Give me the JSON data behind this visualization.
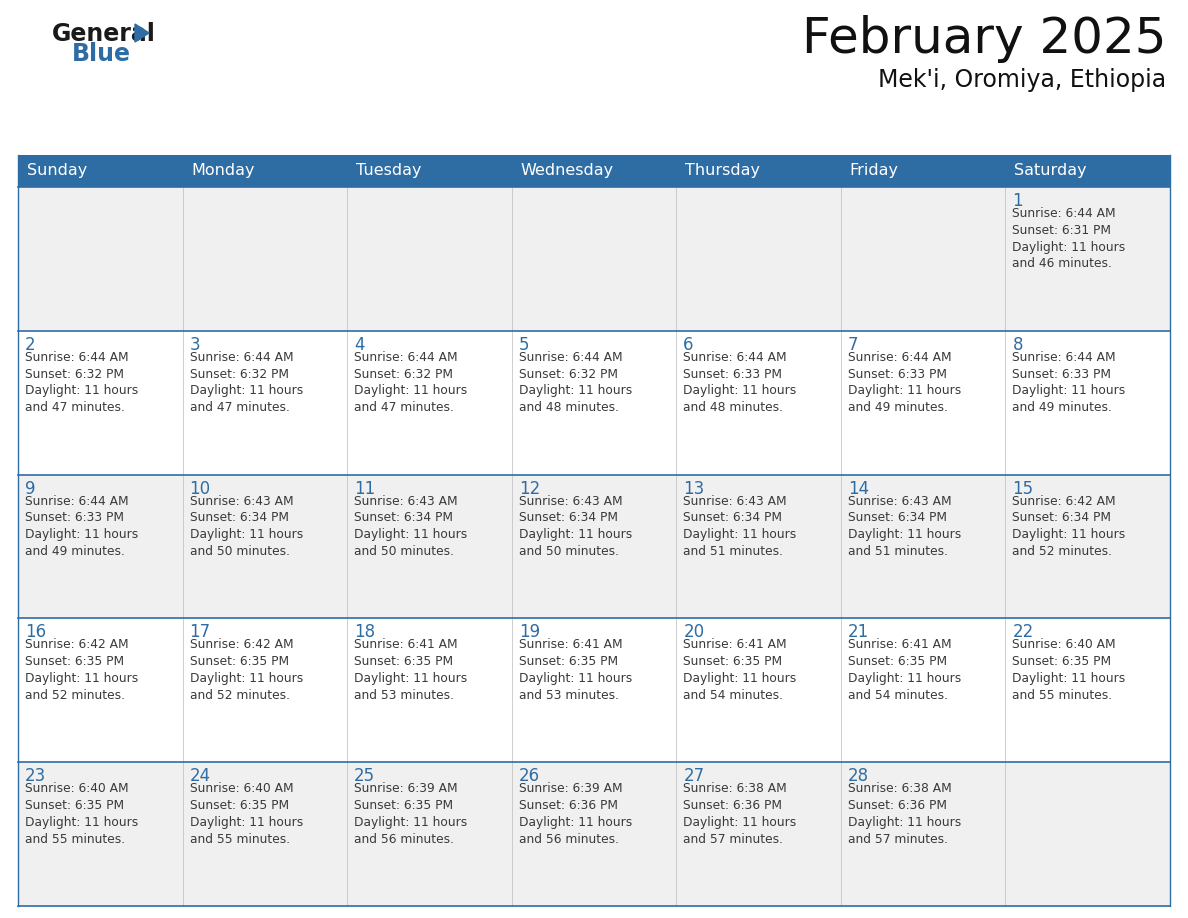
{
  "title": "February 2025",
  "subtitle": "Mek'i, Oromiya, Ethiopia",
  "header_bg": "#2E6DA4",
  "header_text_color": "#FFFFFF",
  "cell_bg_odd": "#F0F0F0",
  "cell_bg_even": "#FFFFFF",
  "day_number_color": "#2E6DA4",
  "info_text_color": "#3a3a3a",
  "border_color": "#2E6DA4",
  "grid_line_color": "#2E6DA4",
  "days_of_week": [
    "Sunday",
    "Monday",
    "Tuesday",
    "Wednesday",
    "Thursday",
    "Friday",
    "Saturday"
  ],
  "calendar_data": [
    [
      {
        "day": null,
        "sunrise": null,
        "sunset": null,
        "daylight_hours": null,
        "daylight_mins": null
      },
      {
        "day": null,
        "sunrise": null,
        "sunset": null,
        "daylight_hours": null,
        "daylight_mins": null
      },
      {
        "day": null,
        "sunrise": null,
        "sunset": null,
        "daylight_hours": null,
        "daylight_mins": null
      },
      {
        "day": null,
        "sunrise": null,
        "sunset": null,
        "daylight_hours": null,
        "daylight_mins": null
      },
      {
        "day": null,
        "sunrise": null,
        "sunset": null,
        "daylight_hours": null,
        "daylight_mins": null
      },
      {
        "day": null,
        "sunrise": null,
        "sunset": null,
        "daylight_hours": null,
        "daylight_mins": null
      },
      {
        "day": 1,
        "sunrise": "6:44 AM",
        "sunset": "6:31 PM",
        "daylight_hours": 11,
        "daylight_mins": 46
      }
    ],
    [
      {
        "day": 2,
        "sunrise": "6:44 AM",
        "sunset": "6:32 PM",
        "daylight_hours": 11,
        "daylight_mins": 47
      },
      {
        "day": 3,
        "sunrise": "6:44 AM",
        "sunset": "6:32 PM",
        "daylight_hours": 11,
        "daylight_mins": 47
      },
      {
        "day": 4,
        "sunrise": "6:44 AM",
        "sunset": "6:32 PM",
        "daylight_hours": 11,
        "daylight_mins": 47
      },
      {
        "day": 5,
        "sunrise": "6:44 AM",
        "sunset": "6:32 PM",
        "daylight_hours": 11,
        "daylight_mins": 48
      },
      {
        "day": 6,
        "sunrise": "6:44 AM",
        "sunset": "6:33 PM",
        "daylight_hours": 11,
        "daylight_mins": 48
      },
      {
        "day": 7,
        "sunrise": "6:44 AM",
        "sunset": "6:33 PM",
        "daylight_hours": 11,
        "daylight_mins": 49
      },
      {
        "day": 8,
        "sunrise": "6:44 AM",
        "sunset": "6:33 PM",
        "daylight_hours": 11,
        "daylight_mins": 49
      }
    ],
    [
      {
        "day": 9,
        "sunrise": "6:44 AM",
        "sunset": "6:33 PM",
        "daylight_hours": 11,
        "daylight_mins": 49
      },
      {
        "day": 10,
        "sunrise": "6:43 AM",
        "sunset": "6:34 PM",
        "daylight_hours": 11,
        "daylight_mins": 50
      },
      {
        "day": 11,
        "sunrise": "6:43 AM",
        "sunset": "6:34 PM",
        "daylight_hours": 11,
        "daylight_mins": 50
      },
      {
        "day": 12,
        "sunrise": "6:43 AM",
        "sunset": "6:34 PM",
        "daylight_hours": 11,
        "daylight_mins": 50
      },
      {
        "day": 13,
        "sunrise": "6:43 AM",
        "sunset": "6:34 PM",
        "daylight_hours": 11,
        "daylight_mins": 51
      },
      {
        "day": 14,
        "sunrise": "6:43 AM",
        "sunset": "6:34 PM",
        "daylight_hours": 11,
        "daylight_mins": 51
      },
      {
        "day": 15,
        "sunrise": "6:42 AM",
        "sunset": "6:34 PM",
        "daylight_hours": 11,
        "daylight_mins": 52
      }
    ],
    [
      {
        "day": 16,
        "sunrise": "6:42 AM",
        "sunset": "6:35 PM",
        "daylight_hours": 11,
        "daylight_mins": 52
      },
      {
        "day": 17,
        "sunrise": "6:42 AM",
        "sunset": "6:35 PM",
        "daylight_hours": 11,
        "daylight_mins": 52
      },
      {
        "day": 18,
        "sunrise": "6:41 AM",
        "sunset": "6:35 PM",
        "daylight_hours": 11,
        "daylight_mins": 53
      },
      {
        "day": 19,
        "sunrise": "6:41 AM",
        "sunset": "6:35 PM",
        "daylight_hours": 11,
        "daylight_mins": 53
      },
      {
        "day": 20,
        "sunrise": "6:41 AM",
        "sunset": "6:35 PM",
        "daylight_hours": 11,
        "daylight_mins": 54
      },
      {
        "day": 21,
        "sunrise": "6:41 AM",
        "sunset": "6:35 PM",
        "daylight_hours": 11,
        "daylight_mins": 54
      },
      {
        "day": 22,
        "sunrise": "6:40 AM",
        "sunset": "6:35 PM",
        "daylight_hours": 11,
        "daylight_mins": 55
      }
    ],
    [
      {
        "day": 23,
        "sunrise": "6:40 AM",
        "sunset": "6:35 PM",
        "daylight_hours": 11,
        "daylight_mins": 55
      },
      {
        "day": 24,
        "sunrise": "6:40 AM",
        "sunset": "6:35 PM",
        "daylight_hours": 11,
        "daylight_mins": 55
      },
      {
        "day": 25,
        "sunrise": "6:39 AM",
        "sunset": "6:35 PM",
        "daylight_hours": 11,
        "daylight_mins": 56
      },
      {
        "day": 26,
        "sunrise": "6:39 AM",
        "sunset": "6:36 PM",
        "daylight_hours": 11,
        "daylight_mins": 56
      },
      {
        "day": 27,
        "sunrise": "6:38 AM",
        "sunset": "6:36 PM",
        "daylight_hours": 11,
        "daylight_mins": 57
      },
      {
        "day": 28,
        "sunrise": "6:38 AM",
        "sunset": "6:36 PM",
        "daylight_hours": 11,
        "daylight_mins": 57
      },
      {
        "day": null,
        "sunrise": null,
        "sunset": null,
        "daylight_hours": null,
        "daylight_mins": null
      }
    ]
  ],
  "logo_text1": "General",
  "logo_text2": "Blue",
  "logo_tri_color": "#2E6DA4",
  "logo_text1_color": "#1a1a1a",
  "logo_text2_color": "#2E6DA4",
  "fig_width": 11.88,
  "fig_height": 9.18,
  "dpi": 100
}
